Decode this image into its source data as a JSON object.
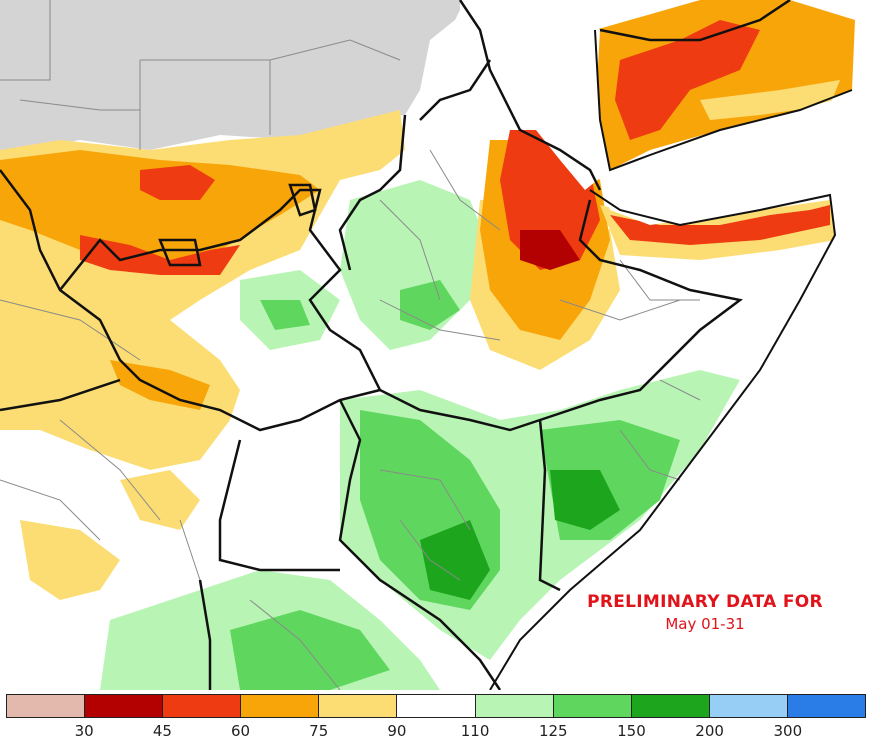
{
  "notice": {
    "line1": "PRELIMINARY DATA FOR",
    "line2": "May 01-31"
  },
  "legend": {
    "colors": [
      "#e3b9ad",
      "#b30000",
      "#ee3b11",
      "#f8a50a",
      "#fcdd73",
      "#ffffff",
      "#b8f5b5",
      "#5fd75f",
      "#1ea51e",
      "#96cef6",
      "#2a7de6"
    ],
    "ticks": [
      "30",
      "45",
      "60",
      "75",
      "90",
      "110",
      "125",
      "150",
      "200",
      "300"
    ]
  },
  "map": {
    "colors": {
      "no_data": "#d4d4d4",
      "sea": "#ffffff",
      "border": "#111111",
      "admin": "#8a8a8a"
    }
  }
}
